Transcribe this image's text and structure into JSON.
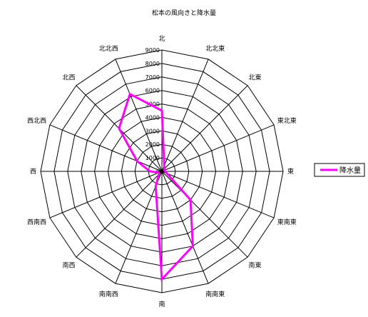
{
  "chart_data": {
    "type": "radar",
    "title": "松本の風向きと降水量",
    "categories": [
      "北",
      "北北東",
      "北東",
      "東北東",
      "東",
      "東南東",
      "南東",
      "南南東",
      "南",
      "南南西",
      "南西",
      "西南西",
      "西",
      "西北西",
      "北西",
      "北北西"
    ],
    "series": [
      {
        "name": "降水量",
        "color": "#ff00ff",
        "values": [
          4500,
          450,
          300,
          200,
          250,
          400,
          3000,
          6000,
          8000,
          1200,
          300,
          250,
          900,
          2000,
          4500,
          6200
        ]
      }
    ],
    "tick_labels": [
      "0",
      "1000",
      "2000",
      "3000",
      "4000",
      "5000",
      "6000",
      "7000",
      "8000",
      "9000"
    ],
    "rlim": [
      0,
      9000
    ],
    "grid": true,
    "legend": "right"
  }
}
